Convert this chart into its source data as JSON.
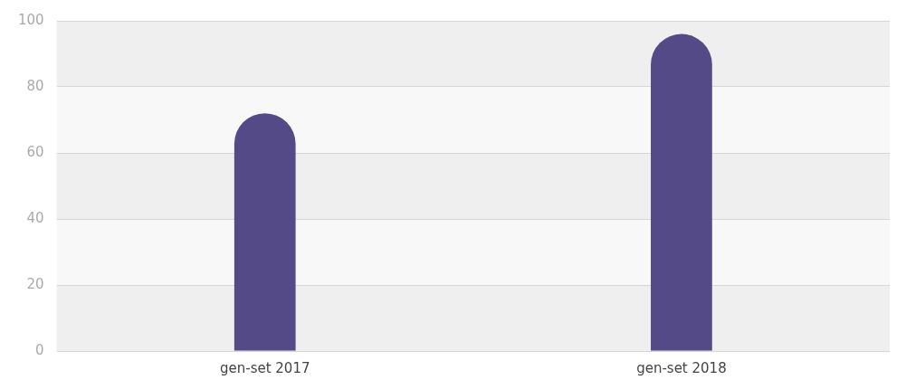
{
  "chart_data": {
    "type": "bar",
    "categories": [
      "gen-set 2017",
      "gen-set 2018"
    ],
    "values": [
      72,
      96
    ],
    "color": "#554a88",
    "ylim": [
      0,
      100
    ],
    "yticks": [
      0,
      20,
      40,
      60,
      80,
      100
    ],
    "grid": "y"
  }
}
